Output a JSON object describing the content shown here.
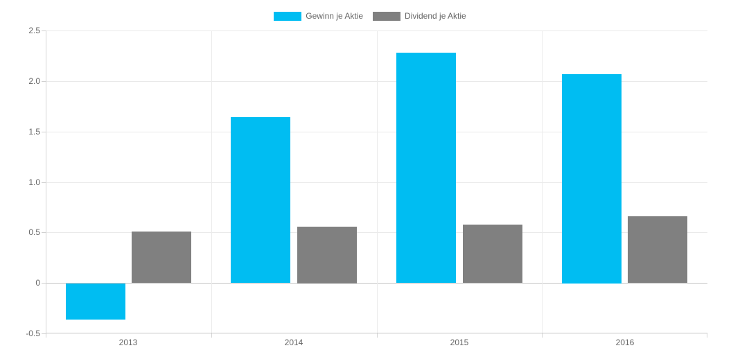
{
  "chart_data": {
    "type": "bar",
    "title": "",
    "xlabel": "",
    "ylabel": "",
    "categories": [
      "2013",
      "2014",
      "2015",
      "2016"
    ],
    "series": [
      {
        "name": "Gewinn je Aktie",
        "color": "#00bdf2",
        "values": [
          -0.36,
          1.64,
          2.28,
          2.07
        ]
      },
      {
        "name": "Dividend je Aktie",
        "color": "#808080",
        "values": [
          0.51,
          0.56,
          0.58,
          0.66
        ]
      }
    ],
    "ylim": [
      -0.5,
      2.5
    ],
    "y_ticks": [
      {
        "value": 2.5,
        "label": "2.5"
      },
      {
        "value": 2.0,
        "label": "2.0"
      },
      {
        "value": 1.5,
        "label": "1.5"
      },
      {
        "value": 1.0,
        "label": "1.0"
      },
      {
        "value": 0.5,
        "label": "0.5"
      },
      {
        "value": 0.0,
        "label": "0"
      },
      {
        "value": -0.5,
        "label": "-0.5"
      }
    ],
    "grid": true,
    "legend_position": "top-center",
    "text_color": "#666666",
    "gridline_color": "#e9e9e9",
    "axis_line_color": "#c3c3c3"
  }
}
